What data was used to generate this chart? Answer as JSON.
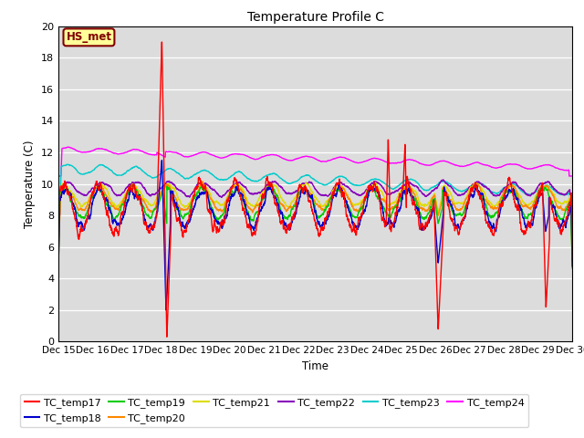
{
  "title": "Temperature Profile C",
  "xlabel": "Time",
  "ylabel": "Temperature (C)",
  "ylim": [
    0,
    20
  ],
  "xlim": [
    0,
    360
  ],
  "plot_bg": "#dcdcdc",
  "fig_bg": "#ffffff",
  "annotation_text": "HS_met",
  "annotation_bg": "#ffff99",
  "annotation_border": "#800000",
  "series_colors": {
    "TC_temp17": "#ff0000",
    "TC_temp18": "#0000cd",
    "TC_temp19": "#00cc00",
    "TC_temp20": "#ff8800",
    "TC_temp21": "#dddd00",
    "TC_temp22": "#8800bb",
    "TC_temp23": "#00cccc",
    "TC_temp24": "#ff00ff"
  },
  "xtick_labels": [
    "Dec 15",
    "Dec 16",
    "Dec 17",
    "Dec 18",
    "Dec 19",
    "Dec 20",
    "Dec 21",
    "Dec 22",
    "Dec 23",
    "Dec 24",
    "Dec 25",
    "Dec 26",
    "Dec 27",
    "Dec 28",
    "Dec 29",
    "Dec 30"
  ],
  "xtick_positions": [
    0,
    24,
    48,
    72,
    96,
    120,
    144,
    168,
    192,
    216,
    240,
    264,
    288,
    312,
    336,
    360
  ],
  "n_points": 3600
}
